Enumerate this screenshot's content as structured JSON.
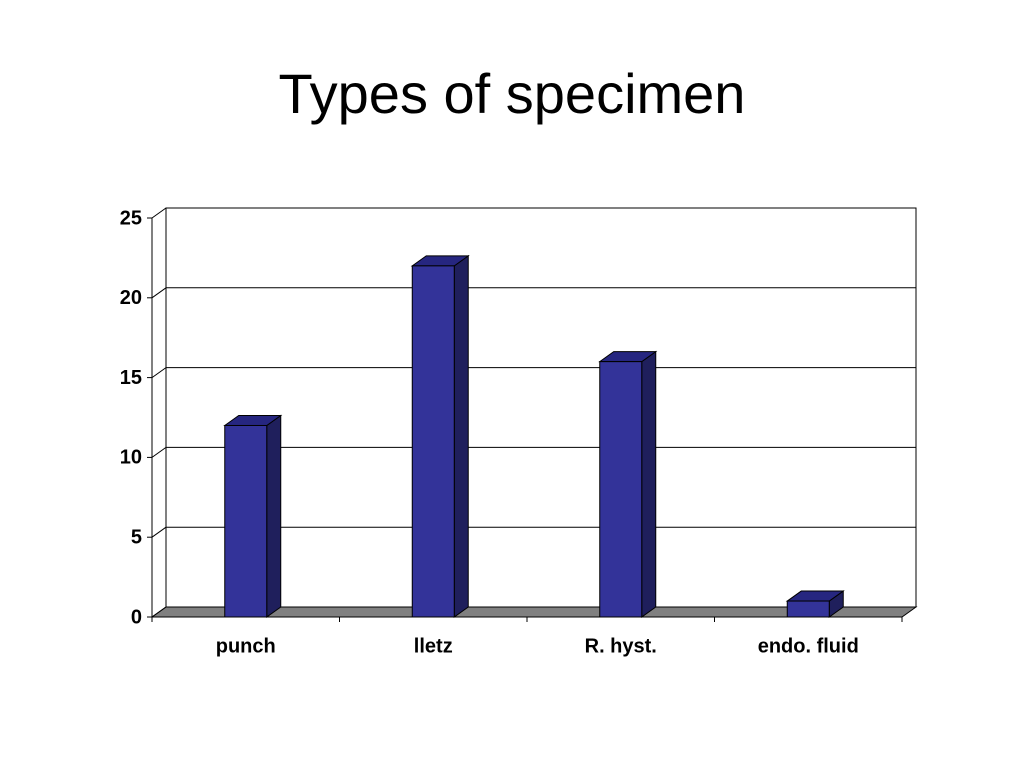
{
  "chart_data": {
    "type": "bar",
    "title": "Types of specimen",
    "categories": [
      "punch",
      "lletz",
      "R. hyst.",
      "endo. fluid"
    ],
    "values": [
      12,
      22,
      16,
      1
    ],
    "color": "#333399",
    "ylim": [
      0,
      25
    ],
    "yticks": [
      0,
      5,
      10,
      15,
      20,
      25
    ],
    "grid": true
  }
}
